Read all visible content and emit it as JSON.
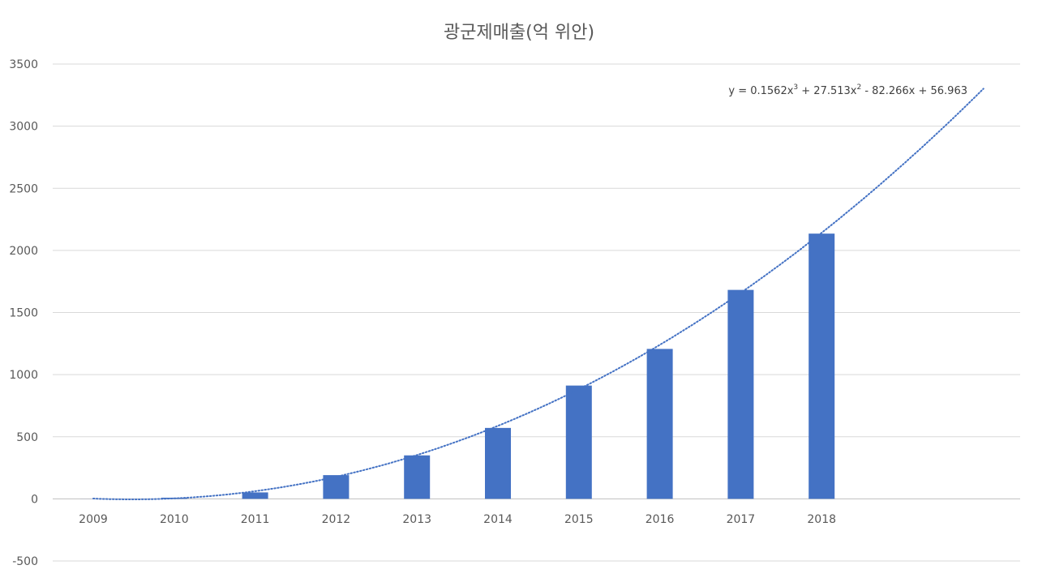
{
  "chart_data": {
    "type": "bar",
    "title": "광군제매출(억 위안)",
    "xlabel": "",
    "ylabel": "",
    "categories": [
      "2009",
      "2010",
      "2011",
      "2012",
      "2013",
      "2014",
      "2015",
      "2016",
      "2017",
      "2018"
    ],
    "series": [
      {
        "values": [
          0.5,
          9.4,
          52,
          191,
          350,
          571,
          912,
          1207,
          1682,
          2135
        ]
      }
    ],
    "ylim": [
      -500,
      3500
    ],
    "yticks": [
      -500,
      0,
      500,
      1000,
      1500,
      2000,
      2500,
      3000,
      3500
    ],
    "grid": true,
    "legend": "none",
    "bar_color": "#4472c4",
    "trendline": {
      "type": "polynomial",
      "order": 3,
      "coefficients": [
        0.1562,
        27.513,
        -82.266,
        56.963
      ],
      "x_range": [
        1,
        12
      ],
      "color": "#4472c4",
      "style": "dotted",
      "equation": {
        "prefix": "y = 0.1562x",
        "exp1": "3",
        "mid": " + 27.513x",
        "exp2": "2",
        "suffix": " - 82.266x + 56.963"
      }
    }
  }
}
